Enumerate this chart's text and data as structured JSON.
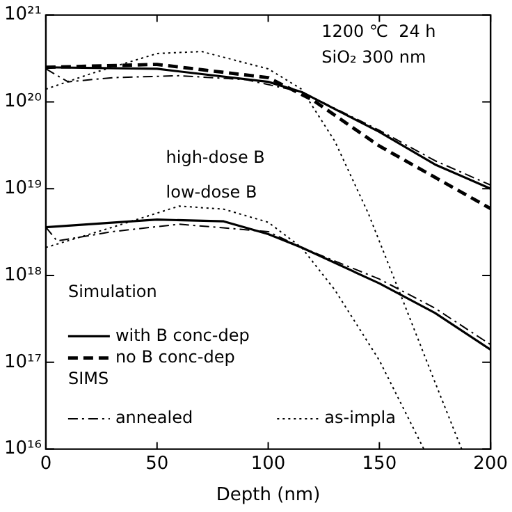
{
  "chart_data": {
    "type": "line",
    "xlabel": "Depth (nm)",
    "log": "y",
    "grid": false,
    "legend": "bottom left",
    "marker": "none",
    "xlim": [
      0,
      200
    ],
    "xticks": [
      0,
      50,
      100,
      150,
      200
    ],
    "ylim": [
      1e+16,
      1e+21
    ],
    "yticks": [
      {
        "value": 1e+16,
        "label": "10¹⁶"
      },
      {
        "value": 1e+17,
        "label": "10¹⁷"
      },
      {
        "value": 1e+18,
        "label": "10¹⁸"
      },
      {
        "value": 1e+19,
        "label": "10¹⁹"
      },
      {
        "value": 1e+20,
        "label": "10²⁰"
      },
      {
        "value": 1e+21,
        "label": "10²¹"
      }
    ],
    "annotations": [
      "1200 ℃  24 h",
      "SiO₂ 300 nm",
      "high-dose B",
      "low-dose B",
      "Simulation",
      "SIMS"
    ],
    "series": [
      {
        "name": "with B conc-dep",
        "color": "#000000",
        "line_style": "solid",
        "x": [
          0,
          50,
          100,
          115,
          150,
          175,
          200
        ],
        "values": [
          2.5e+20,
          2.4e+20,
          1.7e+20,
          1.3e+20,
          4.5e+19,
          1.9e+19,
          1e+19
        ]
      },
      {
        "name": "no B conc-dep",
        "color": "#000000",
        "line_style": "dashed",
        "x": [
          0,
          50,
          100,
          120,
          150,
          175,
          200
        ],
        "values": [
          2.5e+20,
          2.7e+20,
          1.9e+20,
          1.05e+20,
          3.1e+19,
          1.35e+19,
          5.9e+18
        ]
      },
      {
        "name": "annealed",
        "color": "#000000",
        "line_style": "dashdot",
        "x": [
          0,
          10,
          30,
          60,
          90,
          115,
          150,
          175,
          200
        ],
        "values": [
          2.4e+20,
          1.7e+20,
          1.9e+20,
          2e+20,
          1.8e+20,
          1.3e+20,
          4.7e+19,
          2.1e+19,
          1.1e+19
        ]
      },
      {
        "name": "as-impla",
        "color": "#000000",
        "line_style": "dotted",
        "x": [
          0,
          20,
          50,
          70,
          100,
          115,
          130,
          145,
          160,
          175,
          187
        ],
        "values": [
          1.4e+20,
          2.1e+20,
          3.6e+20,
          3.8e+20,
          2.4e+20,
          1.4e+20,
          3.5e+19,
          5.2e+18,
          5.6e+17,
          5.9e+16,
          1e+16
        ]
      },
      {
        "color": "#000000",
        "line_style": "solid",
        "x": [
          0,
          50,
          80,
          100,
          115,
          150,
          175,
          200
        ],
        "values": [
          3.6e+18,
          4.4e+18,
          4.2e+18,
          3e+18,
          2.1e+18,
          8.1e+17,
          3.7e+17,
          1.4e+17
        ]
      },
      {
        "color": "#000000",
        "line_style": "dashdot",
        "x": [
          0,
          5,
          30,
          60,
          100,
          115,
          150,
          175,
          200
        ],
        "values": [
          3.6e+18,
          2.5e+18,
          3.2e+18,
          3.9e+18,
          3.2e+18,
          2.1e+18,
          9.1e+17,
          4.2e+17,
          1.6e+17
        ]
      },
      {
        "color": "#000000",
        "line_style": "dotted",
        "x": [
          0,
          30,
          60,
          80,
          100,
          115,
          130,
          150,
          170
        ],
        "values": [
          2.1e+18,
          3.6e+18,
          6.3e+18,
          5.8e+18,
          4.1e+18,
          2.1e+18,
          6.8e+17,
          1.05e+17,
          1e+16
        ]
      }
    ]
  }
}
